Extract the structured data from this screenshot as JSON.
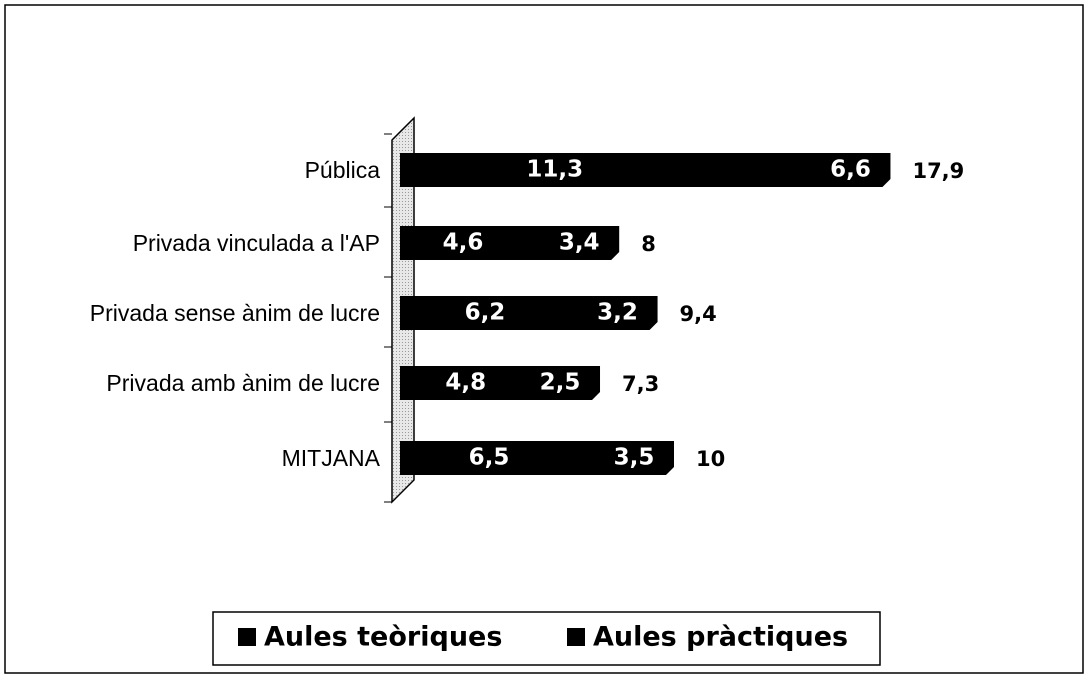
{
  "chart_data": {
    "type": "stacked-bar-horizontal",
    "categories": [
      "Pública",
      "Privada vinculada a l'AP",
      "Privada sense ànim de lucre",
      "Privada amb ànim de lucre",
      "MITJANA"
    ],
    "series": [
      {
        "name": "Aules teòriques",
        "color": "#000000",
        "values": [
          11.3,
          4.6,
          6.2,
          4.8,
          6.5
        ],
        "value_labels": [
          "11,3",
          "4,6",
          "6,2",
          "4,8",
          "6,5"
        ]
      },
      {
        "name": "Aules pràctiques",
        "color": "#000000",
        "values": [
          6.6,
          3.4,
          3.2,
          2.5,
          3.5
        ],
        "value_labels": [
          "6,6",
          "3,4",
          "3,2",
          "2,5",
          "3,5"
        ]
      }
    ],
    "totals": {
      "values": [
        17.9,
        8,
        9.4,
        7.3,
        10
      ],
      "value_labels": [
        "17,9",
        "8",
        "9,4",
        "7,3",
        "10"
      ]
    },
    "legend": "bottom"
  }
}
